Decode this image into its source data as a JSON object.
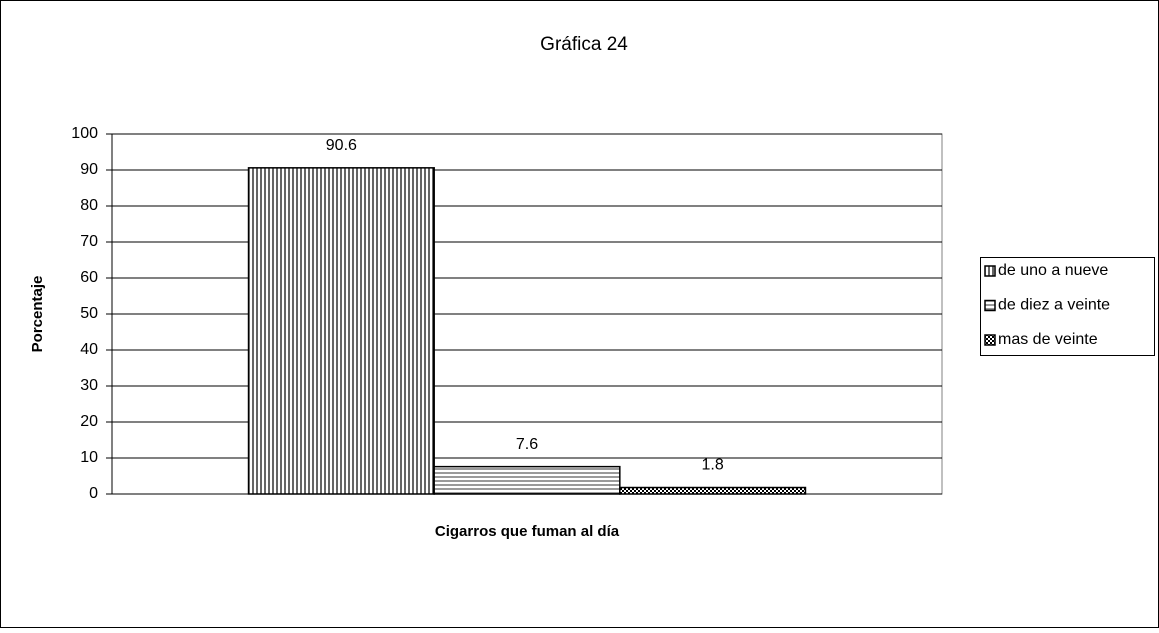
{
  "chart_data": {
    "type": "bar",
    "title": "Gráfica 24",
    "y_label": "Porcentaje",
    "x_label": "Cigarros que fuman al día",
    "categories": [
      null
    ],
    "series": [
      {
        "name": "de uno a nueve",
        "color": "#000000",
        "pattern": "vertical",
        "values": [
          90.6
        ]
      },
      {
        "name": "de diez a veinte",
        "color": "#000000",
        "pattern": "horizontal",
        "values": [
          7.6
        ]
      },
      {
        "name": "mas de veinte",
        "color": "#000000",
        "pattern": "checker",
        "values": [
          1.8
        ]
      }
    ],
    "ylim": [
      0,
      100
    ],
    "yticks": [
      0,
      10,
      20,
      30,
      40,
      50,
      60,
      70,
      80,
      90,
      100
    ],
    "grid": true,
    "legend": "right"
  }
}
